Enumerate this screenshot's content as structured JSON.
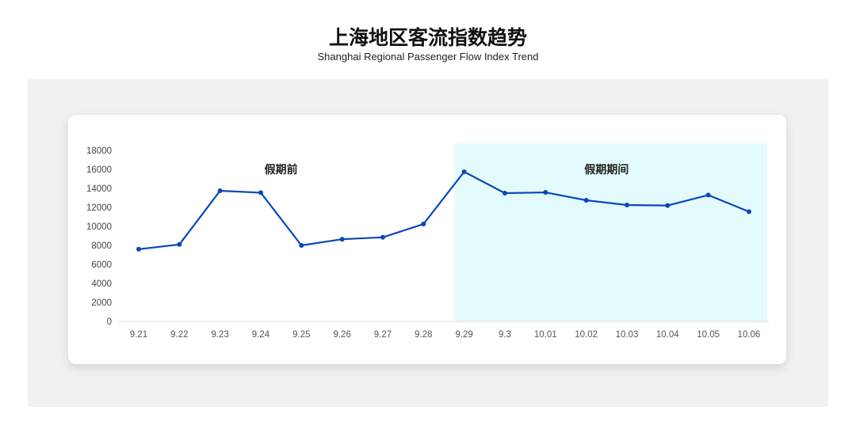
{
  "title": "上海地区客流指数趋势",
  "subtitle": "Shanghai Regional Passenger Flow Index Trend",
  "chart_data": {
    "type": "line",
    "categories": [
      "9.21",
      "9.22",
      "9.23",
      "9.24",
      "9.25",
      "9.26",
      "9.27",
      "9.28",
      "9.29",
      "9.3",
      "10.01",
      "10.02",
      "10.03",
      "10.04",
      "10.05",
      "10.06"
    ],
    "values": [
      7600,
      8100,
      13750,
      13550,
      8000,
      8650,
      8850,
      10250,
      15750,
      13500,
      13580,
      12750,
      12250,
      12200,
      13300,
      11550
    ],
    "ylim": [
      0,
      18000
    ],
    "yticks": [
      0,
      2000,
      4000,
      6000,
      8000,
      10000,
      12000,
      14000,
      16000,
      18000
    ],
    "annotations": [
      {
        "text": "假期前",
        "range": [
          "9.21",
          "9.28"
        ]
      },
      {
        "text": "假期期间",
        "range": [
          "9.29",
          "10.06"
        ],
        "shaded": true
      }
    ],
    "line_color": "#0a47b8",
    "shade_color": "#e4fbfe"
  }
}
